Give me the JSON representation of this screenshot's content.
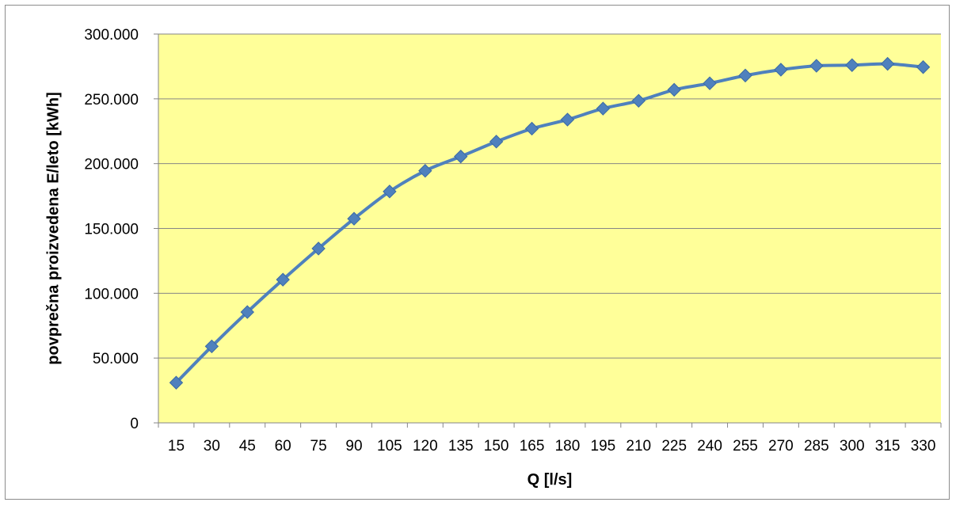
{
  "chart_data": {
    "type": "line",
    "title": "",
    "xlabel": "Q [l/s]",
    "ylabel": "povprečna proizvedena E/leto [kWh]",
    "categories": [
      "15",
      "30",
      "45",
      "60",
      "75",
      "90",
      "105",
      "120",
      "135",
      "150",
      "165",
      "180",
      "195",
      "210",
      "225",
      "240",
      "255",
      "270",
      "285",
      "300",
      "315",
      "330"
    ],
    "x": [
      15,
      30,
      45,
      60,
      75,
      90,
      105,
      120,
      135,
      150,
      165,
      180,
      195,
      210,
      225,
      240,
      255,
      270,
      285,
      300,
      315,
      330
    ],
    "series": [
      {
        "values": [
          31000,
          59000,
          85500,
          110500,
          134500,
          157500,
          178500,
          194500,
          205500,
          217000,
          227000,
          234000,
          242500,
          248500,
          257000,
          262000,
          268000,
          272500,
          275500,
          276000,
          277000,
          274500
        ]
      }
    ],
    "ylim": [
      0,
      300000
    ],
    "yticks": [
      0,
      50000,
      100000,
      150000,
      200000,
      250000,
      300000
    ],
    "ytick_labels": [
      "0",
      "50.000",
      "100.000",
      "150.000",
      "200.000",
      "250.000",
      "300.000"
    ],
    "grid": true,
    "legend": "none",
    "colors": {
      "plot_background": "#ffff99",
      "line": "#4f81bd",
      "marker": "#4f81bd",
      "grid": "#868686",
      "frame": "#8c8c8c"
    }
  }
}
